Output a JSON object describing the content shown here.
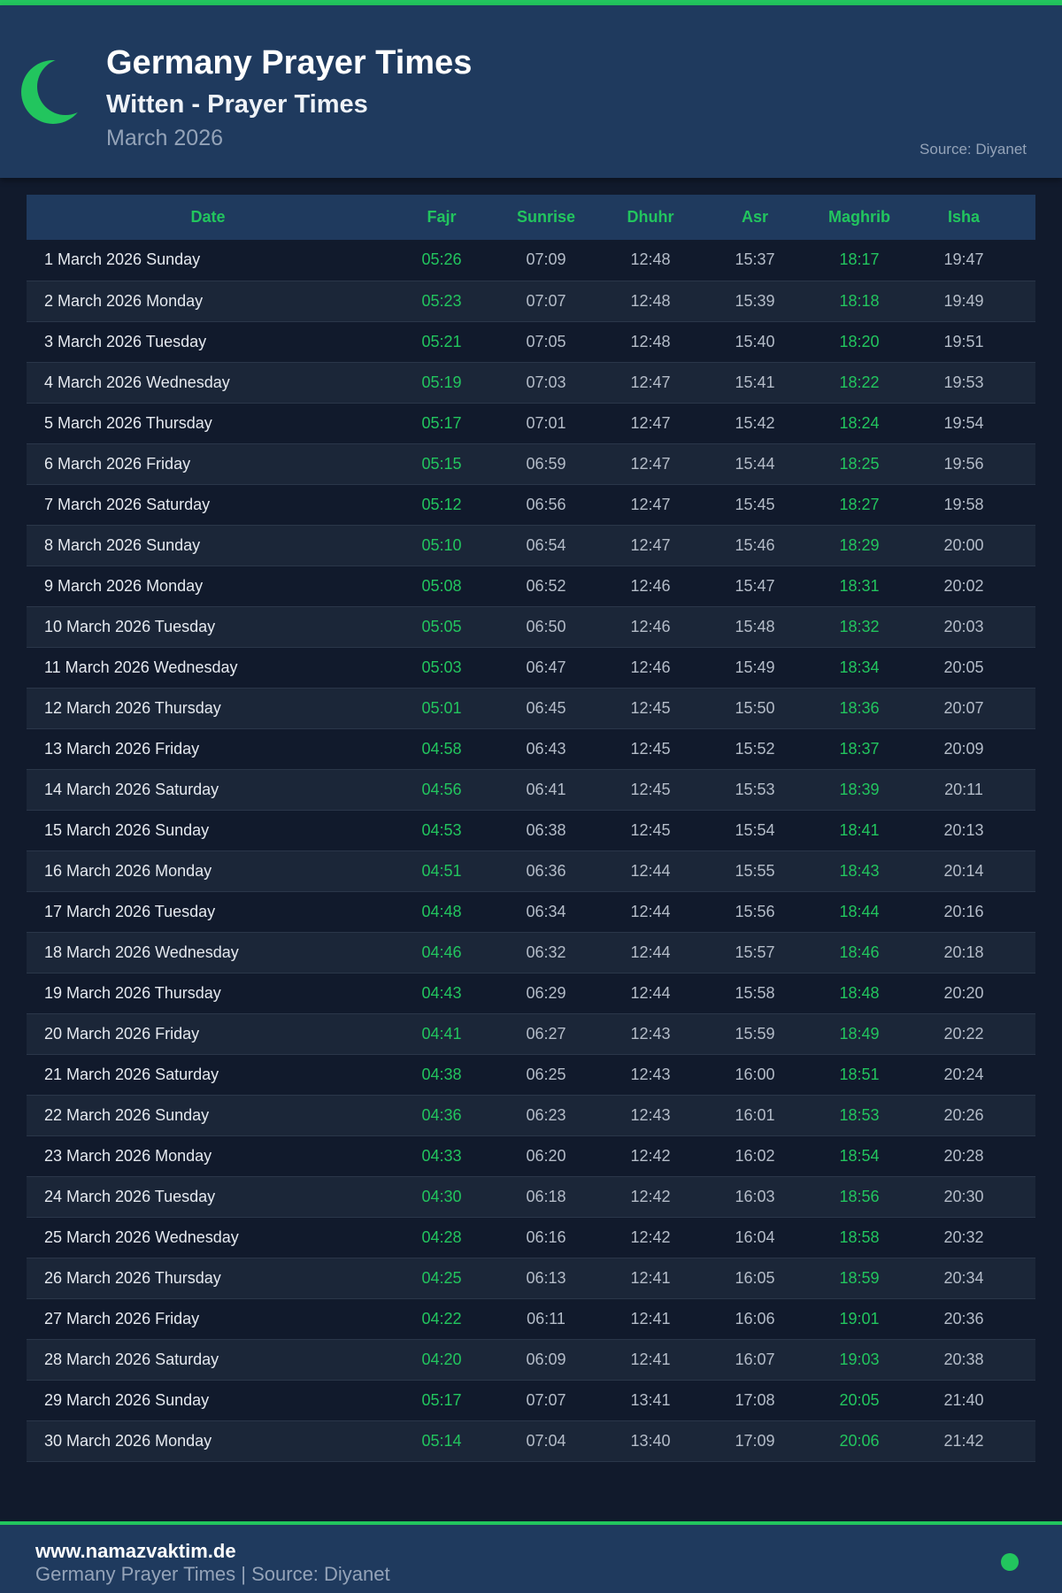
{
  "header": {
    "title": "Germany Prayer Times",
    "subtitle": "Witten - Prayer Times",
    "month": "March 2026",
    "source": "Source: Diyanet",
    "icon": "crescent-moon-icon"
  },
  "colors": {
    "accent": "#22c55e",
    "header_bg": "#1f3a5e",
    "page_bg": "#111a2c"
  },
  "table": {
    "columns": [
      "Date",
      "Fajr",
      "Sunrise",
      "Dhuhr",
      "Asr",
      "Maghrib",
      "Isha"
    ],
    "rows": [
      [
        "1 March 2026 Sunday",
        "05:26",
        "07:09",
        "12:48",
        "15:37",
        "18:17",
        "19:47"
      ],
      [
        "2 March 2026 Monday",
        "05:23",
        "07:07",
        "12:48",
        "15:39",
        "18:18",
        "19:49"
      ],
      [
        "3 March 2026 Tuesday",
        "05:21",
        "07:05",
        "12:48",
        "15:40",
        "18:20",
        "19:51"
      ],
      [
        "4 March 2026 Wednesday",
        "05:19",
        "07:03",
        "12:47",
        "15:41",
        "18:22",
        "19:53"
      ],
      [
        "5 March 2026 Thursday",
        "05:17",
        "07:01",
        "12:47",
        "15:42",
        "18:24",
        "19:54"
      ],
      [
        "6 March 2026 Friday",
        "05:15",
        "06:59",
        "12:47",
        "15:44",
        "18:25",
        "19:56"
      ],
      [
        "7 March 2026 Saturday",
        "05:12",
        "06:56",
        "12:47",
        "15:45",
        "18:27",
        "19:58"
      ],
      [
        "8 March 2026 Sunday",
        "05:10",
        "06:54",
        "12:47",
        "15:46",
        "18:29",
        "20:00"
      ],
      [
        "9 March 2026 Monday",
        "05:08",
        "06:52",
        "12:46",
        "15:47",
        "18:31",
        "20:02"
      ],
      [
        "10 March 2026 Tuesday",
        "05:05",
        "06:50",
        "12:46",
        "15:48",
        "18:32",
        "20:03"
      ],
      [
        "11 March 2026 Wednesday",
        "05:03",
        "06:47",
        "12:46",
        "15:49",
        "18:34",
        "20:05"
      ],
      [
        "12 March 2026 Thursday",
        "05:01",
        "06:45",
        "12:45",
        "15:50",
        "18:36",
        "20:07"
      ],
      [
        "13 March 2026 Friday",
        "04:58",
        "06:43",
        "12:45",
        "15:52",
        "18:37",
        "20:09"
      ],
      [
        "14 March 2026 Saturday",
        "04:56",
        "06:41",
        "12:45",
        "15:53",
        "18:39",
        "20:11"
      ],
      [
        "15 March 2026 Sunday",
        "04:53",
        "06:38",
        "12:45",
        "15:54",
        "18:41",
        "20:13"
      ],
      [
        "16 March 2026 Monday",
        "04:51",
        "06:36",
        "12:44",
        "15:55",
        "18:43",
        "20:14"
      ],
      [
        "17 March 2026 Tuesday",
        "04:48",
        "06:34",
        "12:44",
        "15:56",
        "18:44",
        "20:16"
      ],
      [
        "18 March 2026 Wednesday",
        "04:46",
        "06:32",
        "12:44",
        "15:57",
        "18:46",
        "20:18"
      ],
      [
        "19 March 2026 Thursday",
        "04:43",
        "06:29",
        "12:44",
        "15:58",
        "18:48",
        "20:20"
      ],
      [
        "20 March 2026 Friday",
        "04:41",
        "06:27",
        "12:43",
        "15:59",
        "18:49",
        "20:22"
      ],
      [
        "21 March 2026 Saturday",
        "04:38",
        "06:25",
        "12:43",
        "16:00",
        "18:51",
        "20:24"
      ],
      [
        "22 March 2026 Sunday",
        "04:36",
        "06:23",
        "12:43",
        "16:01",
        "18:53",
        "20:26"
      ],
      [
        "23 March 2026 Monday",
        "04:33",
        "06:20",
        "12:42",
        "16:02",
        "18:54",
        "20:28"
      ],
      [
        "24 March 2026 Tuesday",
        "04:30",
        "06:18",
        "12:42",
        "16:03",
        "18:56",
        "20:30"
      ],
      [
        "25 March 2026 Wednesday",
        "04:28",
        "06:16",
        "12:42",
        "16:04",
        "18:58",
        "20:32"
      ],
      [
        "26 March 2026 Thursday",
        "04:25",
        "06:13",
        "12:41",
        "16:05",
        "18:59",
        "20:34"
      ],
      [
        "27 March 2026 Friday",
        "04:22",
        "06:11",
        "12:41",
        "16:06",
        "19:01",
        "20:36"
      ],
      [
        "28 March 2026 Saturday",
        "04:20",
        "06:09",
        "12:41",
        "16:07",
        "19:03",
        "20:38"
      ],
      [
        "29 March 2026 Sunday",
        "05:17",
        "07:07",
        "13:41",
        "17:08",
        "20:05",
        "21:40"
      ],
      [
        "30 March 2026 Monday",
        "05:14",
        "07:04",
        "13:40",
        "17:09",
        "20:06",
        "21:42"
      ]
    ]
  },
  "footer": {
    "site": "www.namazvaktim.de",
    "note": "Germany Prayer Times | Source: Diyanet",
    "status_dot": "status-dot-icon"
  }
}
